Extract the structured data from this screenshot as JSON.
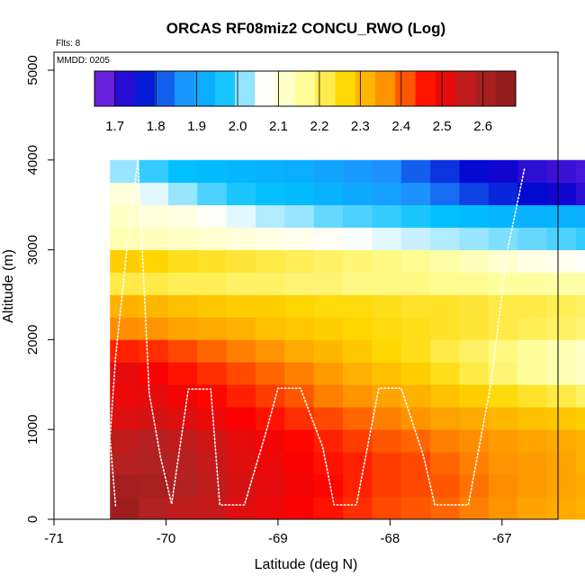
{
  "chart_data": {
    "type": "heatmap",
    "title": "ORCAS RF08miz2 CONCU_RWO (Log)",
    "xlabel": "Latitude (deg N)",
    "ylabel": "Altitude (m)",
    "xlim": [
      -71,
      -66.5
    ],
    "ylim": [
      0,
      5200
    ],
    "x_ticks": [
      -71,
      -70,
      -69,
      -68,
      -67
    ],
    "x_tick_labels": [
      "-71",
      "-70",
      "-69",
      "-68",
      "-67"
    ],
    "y_ticks": [
      0,
      1000,
      2000,
      3000,
      4000,
      5000
    ],
    "y_tick_labels": [
      "0",
      "1000",
      "2000",
      "3000",
      "4000",
      "5000"
    ],
    "annotations": {
      "flights": "Flts: 8",
      "date": "MMDD: 0205"
    },
    "colorbar": {
      "min": 1.65,
      "max": 2.68,
      "ticks": [
        1.7,
        1.8,
        1.9,
        2.0,
        2.1,
        2.2,
        2.3,
        2.4,
        2.5,
        2.6
      ],
      "tick_labels": [
        "1.7",
        "1.8",
        "1.9",
        "2.0",
        "2.1",
        "2.2",
        "2.3",
        "2.4",
        "2.5",
        "2.6"
      ],
      "colors": [
        "#8a2be2",
        "#0000cd",
        "#1e90ff",
        "#00bfff",
        "#ffffff",
        "#ffff99",
        "#ffd700",
        "#ff8c00",
        "#ff0000",
        "#b22222",
        "#8b1a1a"
      ]
    },
    "grid_x0": -70.5,
    "cell_width": 0.26,
    "cell_height": 250,
    "cells": [
      [
        2.63,
        2.58,
        2.56,
        2.55,
        2.52,
        2.5,
        2.48,
        2.46,
        2.44,
        2.42,
        2.41,
        2.4,
        2.38,
        2.36,
        2.34,
        2.33,
        2.32,
        2.31,
        2.3,
        null
      ],
      [
        2.61,
        2.6,
        2.58,
        2.56,
        2.53,
        2.51,
        2.49,
        2.47,
        2.45,
        2.43,
        2.42,
        2.41,
        2.39,
        2.37,
        2.35,
        2.34,
        2.33,
        2.32,
        2.31,
        null
      ],
      [
        2.57,
        2.58,
        2.57,
        2.55,
        2.52,
        2.5,
        2.48,
        2.46,
        2.45,
        2.43,
        2.42,
        2.4,
        2.38,
        2.36,
        2.35,
        2.34,
        2.32,
        2.31,
        2.3,
        null
      ],
      [
        2.56,
        2.57,
        2.56,
        2.54,
        2.51,
        2.49,
        2.47,
        2.45,
        2.43,
        2.41,
        2.4,
        2.38,
        2.37,
        2.35,
        2.34,
        2.33,
        2.32,
        2.3,
        2.29,
        null
      ],
      [
        2.52,
        2.53,
        2.52,
        2.5,
        2.48,
        2.46,
        2.44,
        2.42,
        2.4,
        2.38,
        2.36,
        2.34,
        2.33,
        2.31,
        2.3,
        2.29,
        2.28,
        2.27,
        2.26,
        null
      ],
      [
        2.5,
        2.51,
        2.49,
        2.47,
        2.45,
        2.43,
        2.41,
        2.38,
        2.36,
        2.34,
        2.32,
        2.3,
        2.28,
        2.26,
        2.24,
        2.22,
        2.2,
        2.18,
        2.16,
        null
      ],
      [
        2.51,
        2.48,
        2.46,
        2.44,
        2.42,
        2.4,
        2.38,
        2.35,
        2.32,
        2.3,
        2.28,
        2.25,
        2.22,
        2.19,
        2.16,
        2.14,
        2.12,
        2.1,
        2.08,
        null
      ],
      [
        2.45,
        2.44,
        2.42,
        2.4,
        2.38,
        2.36,
        2.33,
        2.31,
        2.29,
        2.27,
        2.25,
        2.22,
        2.2,
        2.18,
        2.16,
        2.14,
        2.12,
        2.1,
        2.06,
        null
      ],
      [
        2.37,
        2.36,
        2.34,
        2.33,
        2.32,
        2.3,
        2.29,
        2.28,
        2.27,
        2.26,
        2.25,
        2.24,
        2.23,
        2.22,
        2.21,
        2.2,
        2.19,
        2.18,
        2.17,
        null
      ],
      [
        2.32,
        2.31,
        2.3,
        2.29,
        2.28,
        2.28,
        2.27,
        2.26,
        2.26,
        2.25,
        2.24,
        2.24,
        2.23,
        2.22,
        2.22,
        2.21,
        2.2,
        2.19,
        2.18,
        null
      ],
      [
        2.22,
        2.22,
        2.21,
        2.21,
        2.2,
        2.2,
        2.19,
        2.19,
        2.18,
        2.18,
        2.18,
        2.17,
        2.17,
        2.16,
        2.16,
        2.15,
        2.15,
        2.14,
        2.14,
        null
      ],
      [
        2.28,
        2.27,
        2.25,
        2.24,
        2.23,
        2.22,
        2.21,
        2.2,
        2.19,
        2.18,
        2.17,
        2.15,
        2.13,
        2.11,
        2.09,
        2.08,
        2.07,
        2.06,
        2.05,
        null
      ],
      [
        2.14,
        2.13,
        2.12,
        2.11,
        2.1,
        2.09,
        2.08,
        2.07,
        2.06,
        2.05,
        2.04,
        2.03,
        2.02,
        2.01,
        2.0,
        1.99,
        1.98,
        1.98,
        1.99,
        null
      ],
      [
        2.12,
        2.1,
        2.09,
        2.07,
        2.05,
        2.03,
        2.02,
        2.0,
        1.99,
        1.98,
        1.97,
        1.96,
        1.95,
        1.94,
        1.93,
        1.93,
        1.92,
        1.92,
        1.91,
        null
      ],
      [
        2.1,
        2.05,
        2.02,
        1.99,
        1.97,
        1.96,
        1.95,
        1.93,
        1.91,
        1.89,
        1.86,
        1.83,
        1.8,
        1.78,
        1.76,
        1.74,
        1.72,
        1.71,
        1.7,
        null
      ],
      [
        2.02,
        1.98,
        1.96,
        1.95,
        1.94,
        1.93,
        1.92,
        1.9,
        1.88,
        1.86,
        1.82,
        1.79,
        1.76,
        1.74,
        1.72,
        1.71,
        1.7,
        1.69,
        1.72,
        1.66
      ]
    ],
    "flight_path": [
      [
        -70.45,
        150
      ],
      [
        -70.5,
        900
      ],
      [
        -70.45,
        1800
      ],
      [
        -70.35,
        3000
      ],
      [
        -70.25,
        4000
      ],
      [
        -70.15,
        1400
      ],
      [
        -70.05,
        700
      ],
      [
        -69.95,
        170
      ],
      [
        -69.8,
        1450
      ],
      [
        -69.6,
        1450
      ],
      [
        -69.52,
        160
      ],
      [
        -69.3,
        160
      ],
      [
        -69.1,
        1000
      ],
      [
        -69.0,
        1460
      ],
      [
        -68.8,
        1460
      ],
      [
        -68.6,
        800
      ],
      [
        -68.5,
        160
      ],
      [
        -68.3,
        160
      ],
      [
        -68.1,
        1460
      ],
      [
        -67.9,
        1460
      ],
      [
        -67.7,
        700
      ],
      [
        -67.6,
        160
      ],
      [
        -67.3,
        160
      ],
      [
        -67.1,
        1500
      ],
      [
        -66.95,
        3000
      ],
      [
        -66.8,
        3900
      ]
    ]
  }
}
